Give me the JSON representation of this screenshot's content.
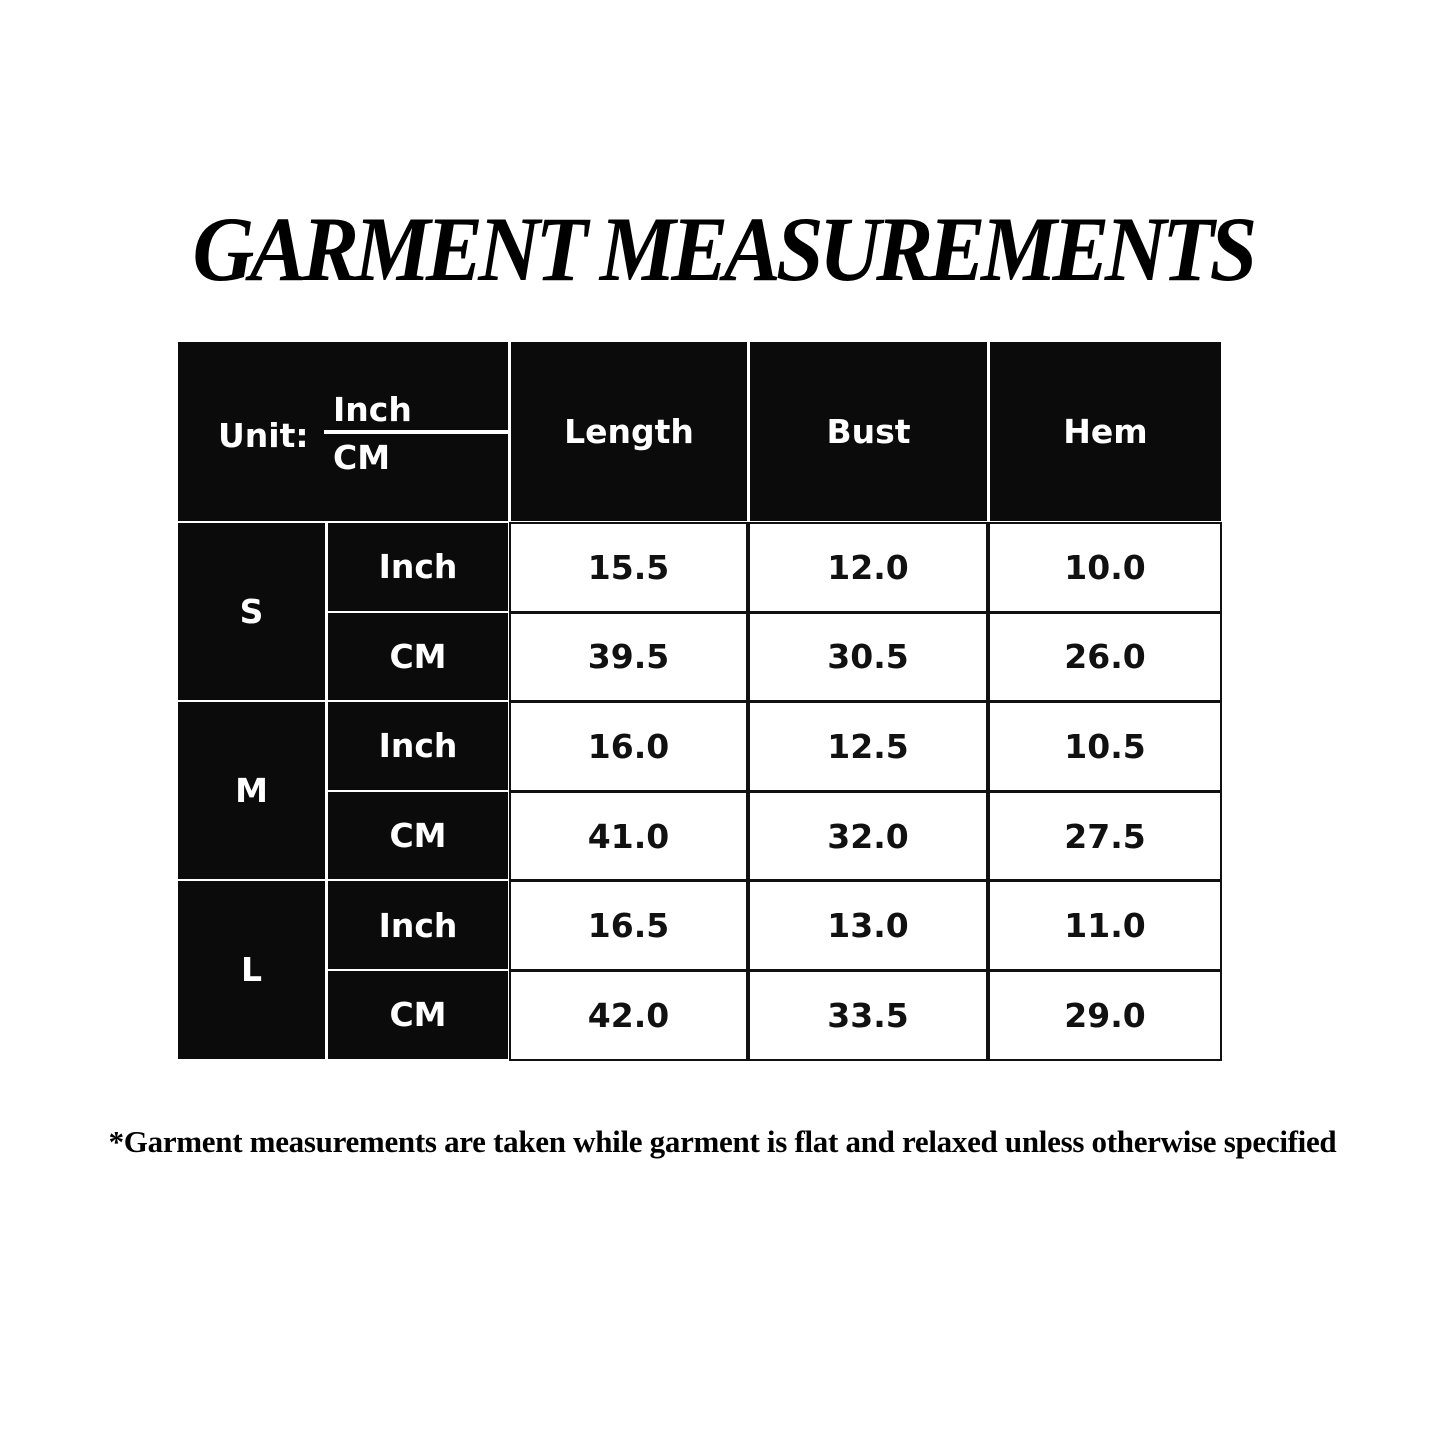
{
  "title": "GARMENT MEASUREMENTS",
  "table": {
    "unit_label": "Unit:",
    "unit_top": "Inch",
    "unit_bottom": "CM",
    "columns": [
      "Length",
      "Bust",
      "Hem"
    ],
    "sizes": [
      {
        "size": "S",
        "rows": [
          {
            "unit": "Inch",
            "values": [
              "15.5",
              "12.0",
              "10.0"
            ]
          },
          {
            "unit": "CM",
            "values": [
              "39.5",
              "30.5",
              "26.0"
            ]
          }
        ]
      },
      {
        "size": "M",
        "rows": [
          {
            "unit": "Inch",
            "values": [
              "16.0",
              "12.5",
              "10.5"
            ]
          },
          {
            "unit": "CM",
            "values": [
              "41.0",
              "32.0",
              "27.5"
            ]
          }
        ]
      },
      {
        "size": "L",
        "rows": [
          {
            "unit": "Inch",
            "values": [
              "16.5",
              "13.0",
              "11.0"
            ]
          },
          {
            "unit": "CM",
            "values": [
              "42.0",
              "33.5",
              "29.0"
            ]
          }
        ]
      }
    ]
  },
  "footnote": "*Garment measurements are taken while garment is flat and relaxed unless otherwise specified"
}
